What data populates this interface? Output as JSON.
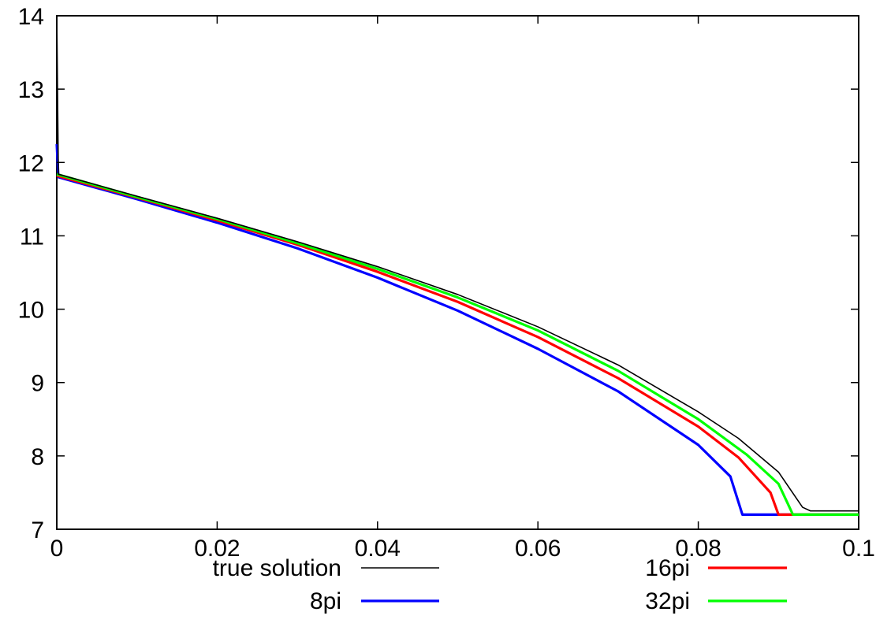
{
  "chart_data": {
    "type": "line",
    "title": "",
    "xlabel": "",
    "ylabel": "",
    "xlim": [
      0,
      0.1
    ],
    "ylim": [
      7,
      14
    ],
    "x_ticks": [
      "0",
      "0.02",
      "0.04",
      "0.06",
      "0.08",
      "0.1"
    ],
    "y_ticks": [
      "7",
      "8",
      "9",
      "10",
      "11",
      "12",
      "13",
      "14"
    ],
    "grid": false,
    "legend_position": "bottom",
    "series": [
      {
        "name": "true solution",
        "color": "#000000",
        "points": [
          [
            0,
            14.0
          ],
          [
            0.0002,
            11.84
          ],
          [
            0.01,
            11.54
          ],
          [
            0.02,
            11.24
          ],
          [
            0.03,
            10.92
          ],
          [
            0.04,
            10.58
          ],
          [
            0.05,
            10.2
          ],
          [
            0.06,
            9.76
          ],
          [
            0.07,
            9.24
          ],
          [
            0.08,
            8.6
          ],
          [
            0.085,
            8.24
          ],
          [
            0.09,
            7.78
          ],
          [
            0.093,
            7.3
          ],
          [
            0.094,
            7.25
          ],
          [
            0.1,
            7.25
          ]
        ]
      },
      {
        "name": "16pi",
        "color": "#ff0000",
        "points": [
          [
            0,
            11.82
          ],
          [
            0.01,
            11.52
          ],
          [
            0.02,
            11.21
          ],
          [
            0.03,
            10.88
          ],
          [
            0.04,
            10.51
          ],
          [
            0.05,
            10.1
          ],
          [
            0.06,
            9.62
          ],
          [
            0.07,
            9.06
          ],
          [
            0.08,
            8.4
          ],
          [
            0.085,
            7.98
          ],
          [
            0.089,
            7.5
          ],
          [
            0.09,
            7.2
          ],
          [
            0.1,
            7.2
          ]
        ]
      },
      {
        "name": "8pi",
        "color": "#0000ff",
        "points": [
          [
            0,
            12.25
          ],
          [
            0.0002,
            11.8
          ],
          [
            0.01,
            11.5
          ],
          [
            0.02,
            11.18
          ],
          [
            0.03,
            10.83
          ],
          [
            0.04,
            10.43
          ],
          [
            0.05,
            9.98
          ],
          [
            0.06,
            9.46
          ],
          [
            0.07,
            8.88
          ],
          [
            0.08,
            8.15
          ],
          [
            0.084,
            7.72
          ],
          [
            0.0855,
            7.2
          ],
          [
            0.1,
            7.2
          ]
        ]
      },
      {
        "name": "32pi",
        "color": "#00ff00",
        "points": [
          [
            0,
            11.84
          ],
          [
            0.01,
            11.53
          ],
          [
            0.02,
            11.23
          ],
          [
            0.03,
            10.9
          ],
          [
            0.04,
            10.55
          ],
          [
            0.05,
            10.16
          ],
          [
            0.06,
            9.71
          ],
          [
            0.07,
            9.16
          ],
          [
            0.08,
            8.5
          ],
          [
            0.086,
            8.02
          ],
          [
            0.09,
            7.62
          ],
          [
            0.0918,
            7.2
          ],
          [
            0.1,
            7.2
          ]
        ]
      }
    ]
  }
}
